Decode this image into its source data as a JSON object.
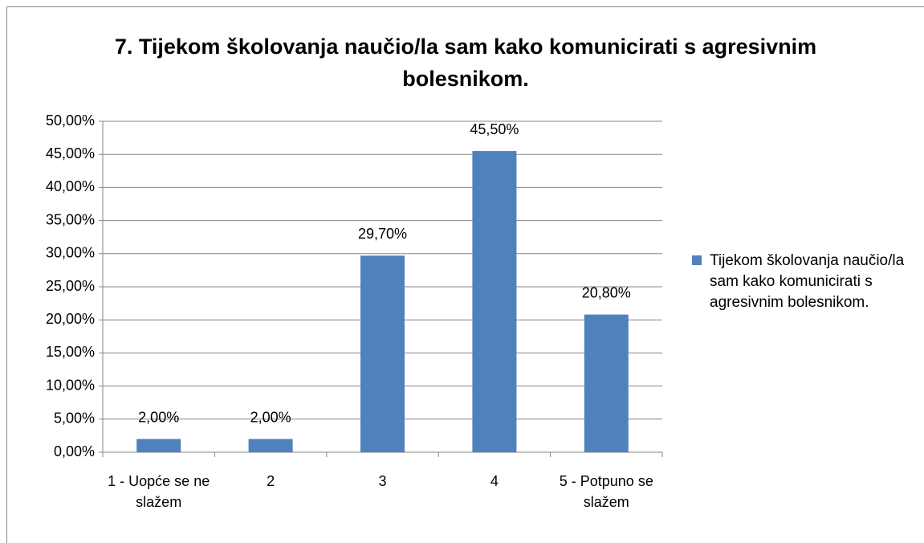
{
  "chart_data": {
    "type": "bar",
    "title": "7. Tijekom školovanja naučio/la sam kako komunicirati s agresivnim bolesnikom.",
    "categories": [
      "1 - Uopće se ne slažem",
      "2",
      "3",
      "4",
      "5 - Potpuno se slažem"
    ],
    "series": [
      {
        "name": "Tijekom školovanja naučio/la sam kako komunicirati s agresivnim bolesnikom.",
        "color": "#4f81bd",
        "values": [
          2,
          2,
          29.7,
          45.5,
          20.8
        ],
        "value_labels": [
          "2,00%",
          "2,00%",
          "29,70%",
          "45,50%",
          "20,80%"
        ]
      }
    ],
    "ylim": [
      0,
      50
    ],
    "yticks": [
      {
        "value": 0,
        "label": "0,00%"
      },
      {
        "value": 5,
        "label": "5,00%"
      },
      {
        "value": 10,
        "label": "10,00%"
      },
      {
        "value": 15,
        "label": "15,00%"
      },
      {
        "value": 20,
        "label": "20,00%"
      },
      {
        "value": 25,
        "label": "25,00%"
      },
      {
        "value": 30,
        "label": "30,00%"
      },
      {
        "value": 35,
        "label": "35,00%"
      },
      {
        "value": 40,
        "label": "40,00%"
      },
      {
        "value": 45,
        "label": "45,00%"
      },
      {
        "value": 50,
        "label": "50,00%"
      }
    ],
    "grid": true,
    "legend": "right"
  }
}
